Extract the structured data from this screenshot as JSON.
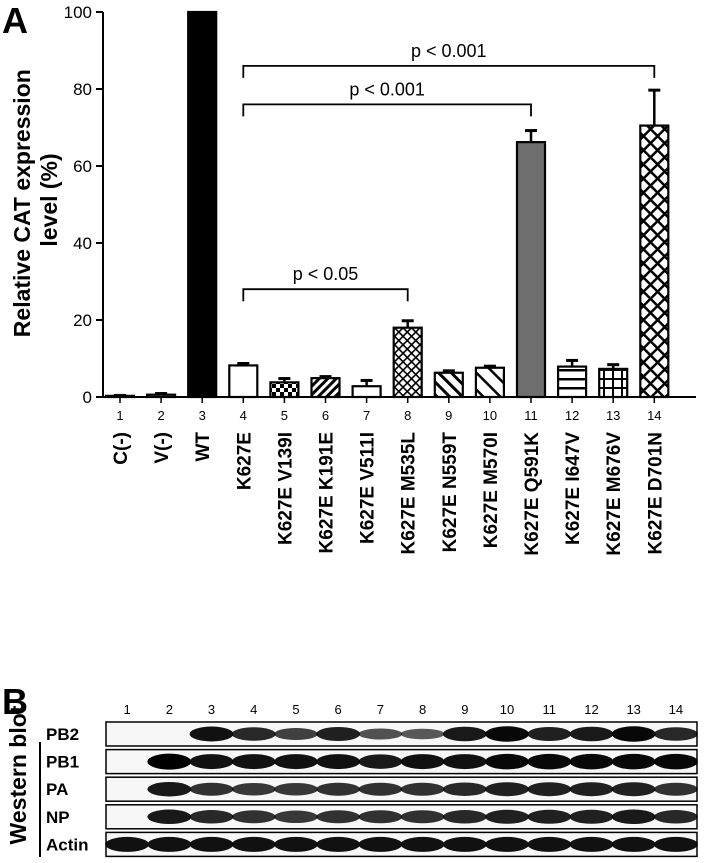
{
  "panel_a": {
    "letter": "A"
  },
  "panel_b": {
    "letter": "B"
  },
  "chart_data": {
    "type": "bar",
    "title": "",
    "xlabel": "",
    "ylabel": "Relative CAT expression level (%)",
    "ylabel_lines": [
      "Relative CAT expression",
      "level (%)"
    ],
    "ylim": [
      0,
      100
    ],
    "yticks": [
      "0",
      "20",
      "40",
      "60",
      "80",
      "100"
    ],
    "grid": false,
    "lane_numbers": [
      "1",
      "2",
      "3",
      "4",
      "5",
      "6",
      "7",
      "8",
      "9",
      "10",
      "11",
      "12",
      "13",
      "14"
    ],
    "categories": [
      "C(-)",
      "V(-)",
      "WT",
      "K627E",
      "K627E V139I",
      "K627E K191E",
      "K627E V511I",
      "K627E M535L",
      "K627E N559T",
      "K627E M570I",
      "K627E Q591K",
      "K627E I647V",
      "K627E M676V",
      "K627E D701N"
    ],
    "values": [
      0.3,
      0.6,
      100,
      8.2,
      3.8,
      4.9,
      2.8,
      18.0,
      6.3,
      7.6,
      66.2,
      7.9,
      7.3,
      70.5
    ],
    "errors": [
      0.1,
      0.3,
      0,
      0.5,
      1.0,
      0.4,
      1.5,
      1.8,
      0.5,
      0.4,
      3.0,
      1.6,
      1.1,
      9.2
    ],
    "fills": [
      "white",
      "white",
      "black",
      "white",
      "dots",
      "diag-left",
      "white",
      "crosshatch-fine",
      "diag-right",
      "diag-right-wide",
      "gray",
      "hlines",
      "grid",
      "crosshatch"
    ],
    "annotations": [
      {
        "text": "p < 0.05",
        "from": 4,
        "to": 8,
        "y": 28
      },
      {
        "text": "p < 0.001",
        "from": 4,
        "to": 11,
        "y": 76
      },
      {
        "text": "p < 0.001",
        "from": 4,
        "to": 14,
        "y": 86
      }
    ]
  },
  "western_blot": {
    "title": "Western blot",
    "lane_numbers": [
      "1",
      "2",
      "3",
      "4",
      "5",
      "6",
      "7",
      "8",
      "9",
      "10",
      "11",
      "12",
      "13",
      "14"
    ],
    "rows": [
      {
        "label": "PB2",
        "intensities": [
          0,
          0,
          0.9,
          0.75,
          0.6,
          0.8,
          0.5,
          0.45,
          0.85,
          0.95,
          0.8,
          0.85,
          0.95,
          0.75
        ]
      },
      {
        "label": "PB1",
        "intensities": [
          0,
          1,
          0.9,
          0.9,
          0.9,
          0.9,
          0.85,
          0.9,
          0.9,
          0.95,
          0.95,
          0.95,
          0.95,
          0.95
        ]
      },
      {
        "label": "PA",
        "intensities": [
          0,
          0.85,
          0.7,
          0.65,
          0.65,
          0.7,
          0.7,
          0.7,
          0.75,
          0.8,
          0.8,
          0.8,
          0.8,
          0.7
        ]
      },
      {
        "label": "NP",
        "intensities": [
          0,
          0.85,
          0.75,
          0.7,
          0.65,
          0.7,
          0.7,
          0.7,
          0.75,
          0.8,
          0.8,
          0.8,
          0.85,
          0.75
        ]
      },
      {
        "label": "Actin",
        "intensities": [
          0.9,
          0.9,
          0.9,
          0.9,
          0.9,
          0.9,
          0.9,
          0.9,
          0.9,
          0.9,
          0.9,
          0.9,
          0.9,
          0.9
        ]
      }
    ]
  }
}
